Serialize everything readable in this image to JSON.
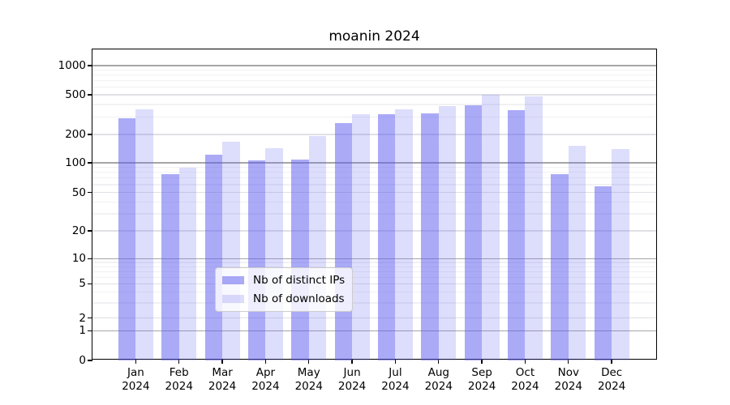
{
  "chart_data": {
    "type": "bar",
    "title": "moanin 2024",
    "categories": [
      "Jan",
      "Feb",
      "Mar",
      "Apr",
      "May",
      "Jun",
      "Jul",
      "Aug",
      "Sep",
      "Oct",
      "Nov",
      "Dec"
    ],
    "x_tick_year": "2024",
    "series": [
      {
        "name": "Nb of distinct IPs",
        "color": "#5555f0",
        "alpha": 0.5,
        "blended_hex": "#aaaaf8",
        "values": [
          293,
          77,
          122,
          107,
          108,
          260,
          322,
          327,
          392,
          350,
          77,
          58
        ]
      },
      {
        "name": "Nb of downloads",
        "color": "#6464f0",
        "alpha": 0.22,
        "blended_hex": "#dcdcfb",
        "values": [
          358,
          90,
          167,
          144,
          193,
          319,
          357,
          386,
          500,
          485,
          151,
          140
        ]
      }
    ],
    "y_axis": {
      "scale": "symlog",
      "ticks": [
        0,
        1,
        2,
        5,
        10,
        20,
        50,
        100,
        200,
        500,
        1000
      ],
      "decade_gridlines": [
        1,
        10,
        100,
        1000
      ],
      "mid_gridlines": [
        2,
        5,
        20,
        50,
        200,
        500
      ],
      "minor_gridlines": [
        3,
        4,
        6,
        7,
        8,
        9,
        30,
        40,
        60,
        70,
        80,
        90,
        300,
        400,
        600,
        700,
        800,
        900
      ],
      "range": [
        0,
        1100
      ]
    },
    "xlabel": "",
    "ylabel": "",
    "grid": true,
    "legend_position": "lower center"
  },
  "colors": {
    "gridline_decade": "#a6a6a6",
    "gridline_mid": "#e0e0e5",
    "gridline_minor": "#f1f1f4",
    "axis": "#000000",
    "legend_border": "#cccccc"
  }
}
